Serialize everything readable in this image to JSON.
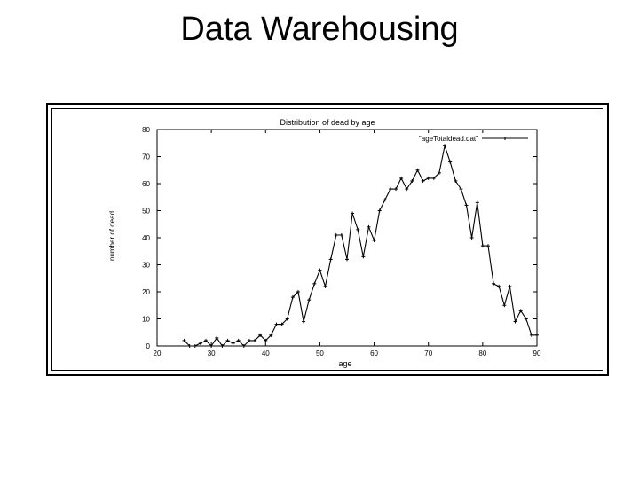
{
  "slide": {
    "title": "Data Warehousing"
  },
  "chart_data": {
    "type": "line",
    "title": "Distribution of dead by age",
    "xlabel": "age",
    "ylabel": "number of dead",
    "xlim": [
      20,
      90
    ],
    "ylim": [
      0,
      80
    ],
    "xticks": [
      20,
      30,
      40,
      50,
      60,
      70,
      80,
      90
    ],
    "yticks": [
      0,
      10,
      20,
      30,
      40,
      50,
      60,
      70,
      80
    ],
    "grid": false,
    "legend_position": "top-right",
    "series": [
      {
        "name": "\"ageTotaldead.dat\"",
        "color": "#000000",
        "x": [
          25,
          26,
          27,
          28,
          29,
          30,
          31,
          32,
          33,
          34,
          35,
          36,
          37,
          38,
          39,
          40,
          41,
          42,
          43,
          44,
          45,
          46,
          47,
          48,
          49,
          50,
          51,
          52,
          53,
          54,
          55,
          56,
          57,
          58,
          59,
          60,
          61,
          62,
          63,
          64,
          65,
          66,
          67,
          68,
          69,
          70,
          71,
          72,
          73,
          74,
          75,
          76,
          77,
          78,
          79,
          80,
          81,
          82,
          83,
          84,
          85,
          86,
          87,
          88,
          89,
          90
        ],
        "y": [
          2,
          0,
          0,
          1,
          2,
          0,
          3,
          0,
          2,
          1,
          2,
          0,
          2,
          2,
          4,
          2,
          4,
          8,
          8,
          10,
          18,
          20,
          9,
          17,
          23,
          28,
          22,
          32,
          41,
          41,
          32,
          49,
          43,
          33,
          44,
          39,
          50,
          54,
          58,
          58,
          62,
          58,
          61,
          65,
          61,
          62,
          62,
          64,
          74,
          68,
          61,
          58,
          52,
          40,
          53,
          37,
          37,
          23,
          22,
          15,
          22,
          9,
          13,
          10,
          4,
          4
        ]
      }
    ]
  }
}
